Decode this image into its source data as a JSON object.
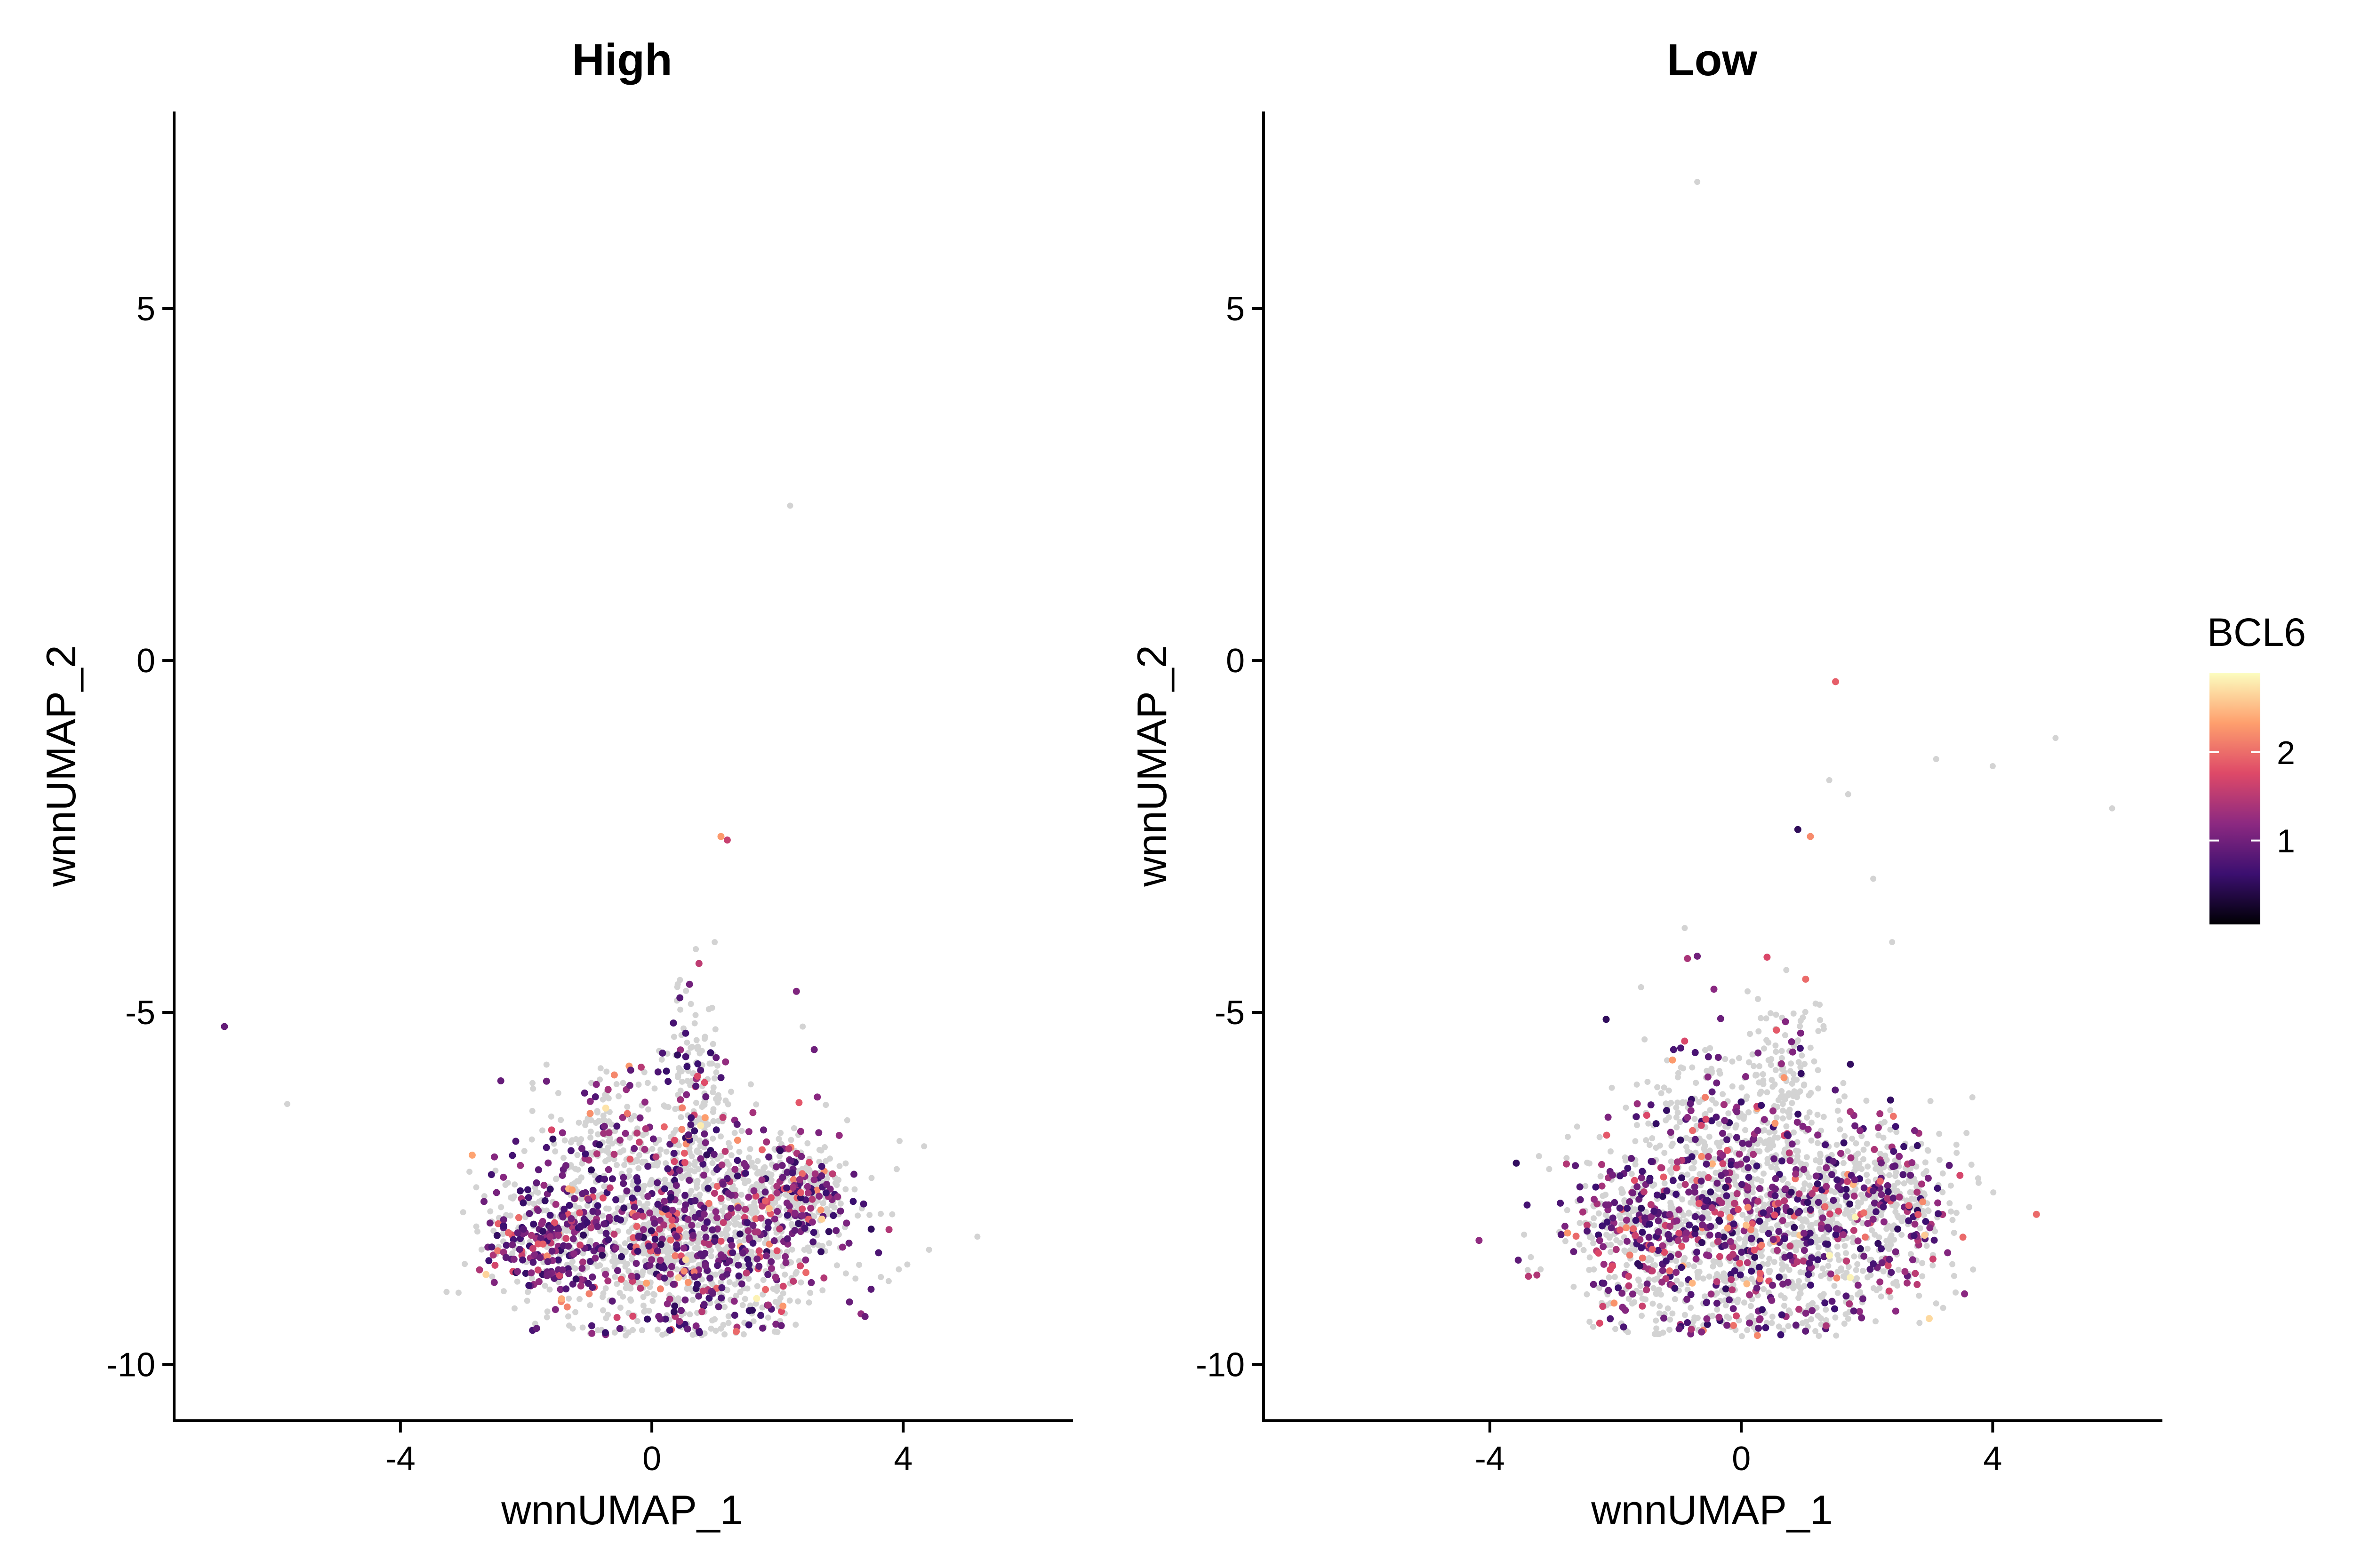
{
  "chart_data": [
    {
      "type": "scatter",
      "title": "High",
      "xlabel": "wnnUMAP_1",
      "ylabel": "wnnUMAP_2",
      "xlim": [
        -7.6,
        6.7
      ],
      "ylim": [
        -10.8,
        7.8
      ],
      "xticks": [
        -4,
        0,
        4
      ],
      "xtick_labels": [
        "-4",
        "0",
        "4"
      ],
      "yticks": [
        -10,
        -5,
        0,
        5
      ],
      "ytick_labels": [
        "-10",
        "-5",
        "0",
        "5"
      ],
      "grid": false,
      "outliers": [
        {
          "x": -6.8,
          "y": -5.2,
          "v": 0.9
        },
        {
          "x": -5.8,
          "y": -6.3,
          "v": 0
        },
        {
          "x": 2.2,
          "y": 2.2,
          "v": 0
        },
        {
          "x": 1.1,
          "y": -2.5,
          "v": 2.3
        },
        {
          "x": 1.2,
          "y": -2.55,
          "v": 1.6
        },
        {
          "x": 2.3,
          "y": -4.7,
          "v": 1.1
        },
        {
          "x": 0.6,
          "y": -4.6,
          "v": 1.0
        },
        {
          "x": 0.7,
          "y": -4.1,
          "v": 0
        },
        {
          "x": 1.0,
          "y": -4.0,
          "v": 0
        },
        {
          "x": 2.4,
          "y": -5.2,
          "v": 0
        }
      ],
      "clusters": [
        {
          "cx": 0.6,
          "cy": -8.1,
          "sx": 1.2,
          "sy": 0.75,
          "n": 1500,
          "frac_expr": 0.34
        },
        {
          "cx": -1.6,
          "cy": -8.2,
          "sx": 0.55,
          "sy": 0.45,
          "n": 260,
          "frac_expr": 0.6
        },
        {
          "cx": 0.7,
          "cy": -6.1,
          "sx": 0.3,
          "sy": 0.7,
          "n": 160,
          "frac_expr": 0.2
        },
        {
          "cx": -0.6,
          "cy": -6.8,
          "sx": 0.6,
          "sy": 0.5,
          "n": 150,
          "frac_expr": 0.3
        },
        {
          "cx": 2.3,
          "cy": -7.6,
          "sx": 0.4,
          "sy": 0.35,
          "n": 220,
          "frac_expr": 0.35
        }
      ]
    },
    {
      "type": "scatter",
      "title": "Low",
      "xlabel": "wnnUMAP_1",
      "ylabel": "wnnUMAP_2",
      "xlim": [
        -7.6,
        6.7
      ],
      "ylim": [
        -10.8,
        7.8
      ],
      "xticks": [
        -4,
        0,
        4
      ],
      "xtick_labels": [
        "-4",
        "0",
        "4"
      ],
      "yticks": [
        -10,
        -5,
        0,
        5
      ],
      "ytick_labels": [
        "-10",
        "-5",
        "0",
        "5"
      ],
      "grid": false,
      "outliers": [
        {
          "x": -0.7,
          "y": 6.8,
          "v": 0
        },
        {
          "x": 1.5,
          "y": -0.3,
          "v": 1.9
        },
        {
          "x": 3.1,
          "y": -1.4,
          "v": 0
        },
        {
          "x": 4.0,
          "y": -1.5,
          "v": 0
        },
        {
          "x": 5.0,
          "y": -1.1,
          "v": 0
        },
        {
          "x": 5.9,
          "y": -2.1,
          "v": 0
        },
        {
          "x": 0.9,
          "y": -2.4,
          "v": 0.5
        },
        {
          "x": 1.1,
          "y": -2.5,
          "v": 2.2
        },
        {
          "x": 1.4,
          "y": -1.7,
          "v": 0
        },
        {
          "x": 1.7,
          "y": -1.9,
          "v": 0
        },
        {
          "x": 2.1,
          "y": -3.1,
          "v": 0
        },
        {
          "x": 2.4,
          "y": -4.0,
          "v": 0
        },
        {
          "x": -0.7,
          "y": -4.2,
          "v": 1.0
        },
        {
          "x": -0.9,
          "y": -3.8,
          "v": 0
        },
        {
          "x": 0.1,
          "y": -4.7,
          "v": 0
        }
      ],
      "clusters": [
        {
          "cx": 0.4,
          "cy": -8.0,
          "sx": 1.3,
          "sy": 0.8,
          "n": 1500,
          "frac_expr": 0.32
        },
        {
          "cx": -1.7,
          "cy": -8.1,
          "sx": 0.55,
          "sy": 0.55,
          "n": 240,
          "frac_expr": 0.55
        },
        {
          "cx": 0.7,
          "cy": -5.9,
          "sx": 0.3,
          "sy": 0.6,
          "n": 130,
          "frac_expr": 0.15
        },
        {
          "cx": -0.6,
          "cy": -6.5,
          "sx": 0.6,
          "sy": 0.6,
          "n": 160,
          "frac_expr": 0.3
        },
        {
          "cx": 2.5,
          "cy": -7.6,
          "sx": 0.4,
          "sy": 0.35,
          "n": 200,
          "frac_expr": 0.3
        }
      ]
    }
  ],
  "legend": {
    "title": "BCL6",
    "placement": "right",
    "range": [
      0.05,
      2.9
    ],
    "ticks": [
      1,
      2
    ],
    "tick_labels": [
      "1",
      "2"
    ],
    "colors": [
      "#000004",
      "#3b0f70",
      "#8c2981",
      "#de4968",
      "#fe9f6d",
      "#fcfdbf"
    ]
  },
  "not_expressed_color": "#d3d3d3"
}
